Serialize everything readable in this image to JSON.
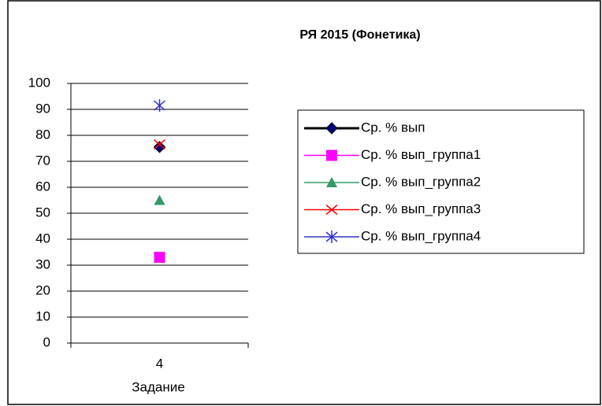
{
  "chart_data": {
    "type": "line",
    "title": "РЯ 2015 (Фонетика)",
    "x_label": "Задание",
    "categories": [
      "4"
    ],
    "series": [
      {
        "name": "Ср. % вып",
        "color": "#000080",
        "marker": "diamond",
        "values": [
          75.5
        ]
      },
      {
        "name": "Ср. % вып_группа1",
        "color": "#ff00ff",
        "marker": "square",
        "values": [
          33
        ]
      },
      {
        "name": "Ср. % вып_группа2",
        "color": "#339966",
        "marker": "triangle",
        "values": [
          55
        ]
      },
      {
        "name": "Ср. % вып_группа3",
        "color": "#ff0000",
        "marker": "x",
        "values": [
          76.5
        ]
      },
      {
        "name": "Ср. % вып_группа4",
        "color": "#3333cc",
        "marker": "star",
        "values": [
          91.5
        ]
      }
    ],
    "ylim": [
      0,
      100
    ],
    "yticks": [
      0,
      10,
      20,
      30,
      40,
      50,
      60,
      70,
      80,
      90,
      100
    ],
    "grid": true,
    "legend": "right"
  }
}
